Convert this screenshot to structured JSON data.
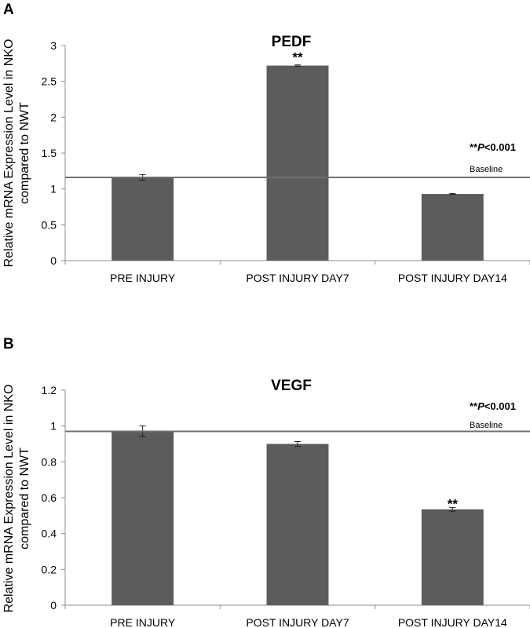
{
  "chart_data": [
    {
      "panel": "A",
      "type": "bar",
      "title": "PEDF",
      "ylabel": [
        "Relative mRNA Expression Level in NKO",
        "compared to NWT"
      ],
      "ylim": [
        0,
        3
      ],
      "ytick_step": 0.5,
      "yticks": [
        "0",
        "0.5",
        "1",
        "1.5",
        "2",
        "2.5",
        "3"
      ],
      "categories": [
        "PRE INJURY",
        "POST INJURY DAY7",
        "POST INJURY DAY14"
      ],
      "values": [
        1.16,
        2.72,
        0.93
      ],
      "errors": [
        0.04,
        0.01,
        0.005
      ],
      "significance": [
        "",
        "**",
        ""
      ],
      "baseline": 1.16,
      "baseline_label": "Baseline",
      "pvalue_note": {
        "stars": "**",
        "p": "P",
        "rest": "<0.001"
      },
      "bar_color": "#5b5c5e"
    },
    {
      "panel": "B",
      "type": "bar",
      "title": "VEGF",
      "ylabel": [
        "Relative mRNA Expression Level in NKO",
        "compared to NWT"
      ],
      "ylim": [
        0,
        1.2
      ],
      "ytick_step": 0.2,
      "yticks": [
        "0",
        "0.2",
        "0.4",
        "0.6",
        "0.8",
        "1",
        "1.2"
      ],
      "categories": [
        "PRE INJURY",
        "POST INJURY DAY7",
        "POST INJURY DAY14"
      ],
      "values": [
        0.97,
        0.9,
        0.535
      ],
      "errors": [
        0.03,
        0.013,
        0.01
      ],
      "significance": [
        "",
        "",
        "**"
      ],
      "baseline": 0.97,
      "baseline_label": "Baseline",
      "pvalue_note": {
        "stars": "**",
        "p": "P",
        "rest": "<0.001"
      },
      "bar_color": "#5b5c5e"
    }
  ]
}
